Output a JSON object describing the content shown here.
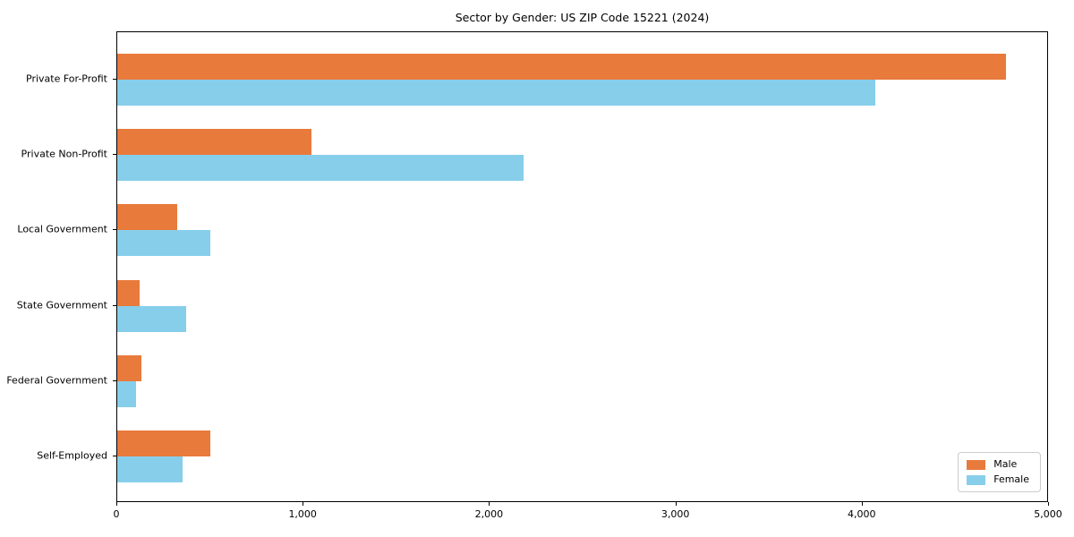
{
  "chart_data": {
    "type": "bar",
    "orientation": "horizontal",
    "title": "Sector by Gender: US ZIP Code 15221 (2024)",
    "categories": [
      "Private For-Profit",
      "Private Non-Profit",
      "Local Government",
      "State Government",
      "Federal Government",
      "Self-Employed"
    ],
    "series": [
      {
        "name": "Male",
        "color": "#e87a3c",
        "values": [
          4770,
          1040,
          320,
          120,
          130,
          500
        ]
      },
      {
        "name": "Female",
        "color": "#87ceeb",
        "values": [
          4070,
          2180,
          500,
          370,
          100,
          350
        ]
      }
    ],
    "xlabel": "",
    "ylabel": "",
    "xlim": [
      0,
      5000
    ],
    "xticks": [
      0,
      1000,
      2000,
      3000,
      4000,
      5000
    ],
    "xtick_labels": [
      "0",
      "1,000",
      "2,000",
      "3,000",
      "4,000",
      "5,000"
    ],
    "grid": false,
    "legend_position": "lower right",
    "background_color": "#ffffff",
    "axis_color": "#000000"
  }
}
